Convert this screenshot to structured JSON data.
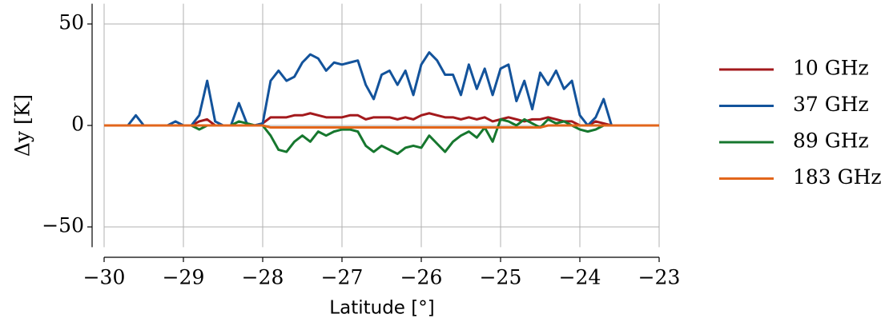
{
  "chart_data": {
    "type": "line",
    "xlabel": "Latitude [°]",
    "ylabel": "Δy [K]",
    "x": [
      -30.0,
      -29.9,
      -29.8,
      -29.7,
      -29.6,
      -29.5,
      -29.4,
      -29.3,
      -29.2,
      -29.1,
      -29.0,
      -28.9,
      -28.8,
      -28.7,
      -28.6,
      -28.5,
      -28.4,
      -28.3,
      -28.2,
      -28.1,
      -28.0,
      -27.9,
      -27.8,
      -27.7,
      -27.6,
      -27.5,
      -27.4,
      -27.3,
      -27.2,
      -27.1,
      -27.0,
      -26.9,
      -26.8,
      -26.7,
      -26.6,
      -26.5,
      -26.4,
      -26.3,
      -26.2,
      -26.1,
      -26.0,
      -25.9,
      -25.8,
      -25.7,
      -25.6,
      -25.5,
      -25.4,
      -25.3,
      -25.2,
      -25.1,
      -25.0,
      -24.9,
      -24.8,
      -24.7,
      -24.6,
      -24.5,
      -24.4,
      -24.3,
      -24.2,
      -24.1,
      -24.0,
      -23.9,
      -23.8,
      -23.7,
      -23.6,
      -23.5,
      -23.4,
      -23.3,
      -23.2,
      -23.1,
      -23.0
    ],
    "series": [
      {
        "name": "10 GHz",
        "color": "#a3191c",
        "values": [
          0,
          0,
          0,
          0,
          0,
          0,
          0,
          0,
          0,
          0,
          0,
          0,
          2,
          3,
          0,
          0,
          0,
          0,
          0,
          0,
          1,
          4,
          4,
          4,
          5,
          5,
          6,
          5,
          4,
          4,
          4,
          5,
          5,
          3,
          4,
          4,
          4,
          3,
          4,
          3,
          5,
          6,
          5,
          4,
          4,
          3,
          4,
          3,
          4,
          2,
          3,
          4,
          3,
          2,
          3,
          3,
          4,
          3,
          2,
          2,
          0,
          0,
          2,
          1,
          0,
          0,
          0,
          0,
          0,
          0,
          0
        ]
      },
      {
        "name": "37 GHz",
        "color": "#13539b",
        "values": [
          0,
          0,
          0,
          0,
          5,
          0,
          0,
          0,
          0,
          2,
          0,
          0,
          5,
          22,
          2,
          0,
          0,
          11,
          1,
          0,
          1,
          22,
          27,
          22,
          24,
          31,
          35,
          33,
          27,
          31,
          30,
          31,
          32,
          20,
          13,
          25,
          27,
          20,
          27,
          15,
          30,
          36,
          32,
          25,
          25,
          15,
          30,
          18,
          28,
          15,
          28,
          30,
          12,
          22,
          8,
          26,
          20,
          27,
          18,
          22,
          5,
          0,
          4,
          13,
          0,
          0,
          0,
          0,
          0,
          0,
          0
        ]
      },
      {
        "name": "89 GHz",
        "color": "#16772e",
        "values": [
          0,
          0,
          0,
          0,
          0,
          0,
          0,
          0,
          0,
          0,
          0,
          0,
          -2,
          0,
          0,
          0,
          0,
          2,
          1,
          0,
          0,
          -5,
          -12,
          -13,
          -8,
          -5,
          -8,
          -3,
          -5,
          -3,
          -2,
          -2,
          -3,
          -10,
          -13,
          -10,
          -12,
          -14,
          -11,
          -10,
          -11,
          -5,
          -9,
          -13,
          -8,
          -5,
          -3,
          -6,
          -1,
          -8,
          3,
          2,
          0,
          3,
          1,
          -1,
          3,
          1,
          2,
          0,
          -2,
          -3,
          -2,
          0,
          0,
          0,
          0,
          0,
          0,
          0,
          0
        ]
      },
      {
        "name": "183 GHz",
        "color": "#e2661b",
        "values": [
          0,
          0,
          0,
          0,
          0,
          0,
          0,
          0,
          0,
          0,
          0,
          0,
          0,
          0,
          0,
          0,
          0,
          0,
          0,
          0,
          0,
          -1,
          -1,
          -1,
          -1,
          -1,
          -1,
          -1,
          -1,
          -1,
          -1,
          -1,
          -1,
          -1,
          -1,
          -1,
          -1,
          -1,
          -1,
          -1,
          -1,
          -1,
          -1,
          -1,
          -1,
          -1,
          -1,
          -1,
          -1,
          -1,
          -1,
          -1,
          -1,
          -1,
          -1,
          -1,
          0,
          0,
          0,
          0,
          0,
          0,
          0,
          0,
          0,
          0,
          0,
          0,
          0,
          0,
          0
        ]
      }
    ],
    "xlim": [
      -30,
      -23
    ],
    "xticks": [
      {
        "value": -30,
        "label": "−30"
      },
      {
        "value": -29,
        "label": "−29"
      },
      {
        "value": -28,
        "label": "−28"
      },
      {
        "value": -27,
        "label": "−27"
      },
      {
        "value": -26,
        "label": "−26"
      },
      {
        "value": -25,
        "label": "−25"
      },
      {
        "value": -24,
        "label": "−24"
      },
      {
        "value": -23,
        "label": "−23"
      }
    ],
    "ylim": [
      -60,
      60
    ],
    "yticks": [
      {
        "value": -50,
        "label": "−50"
      },
      0,
      50
    ],
    "grid": true,
    "legend": "right"
  }
}
